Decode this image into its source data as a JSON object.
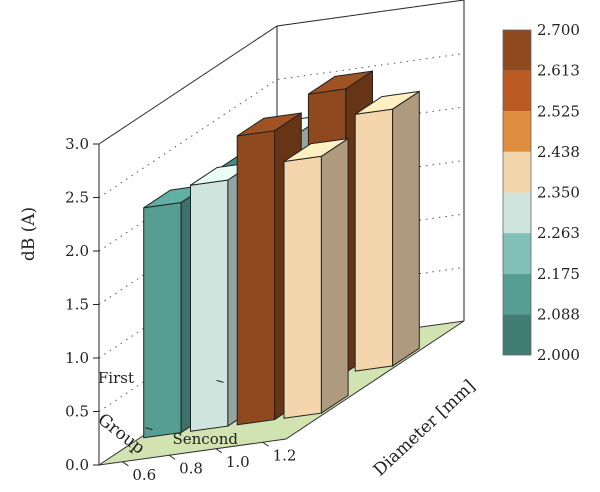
{
  "chart_data": {
    "type": "bar3d",
    "zlabel": "dB (A)",
    "ylabel": "Group",
    "xlabel": "Diameter [mm]",
    "zlim": [
      0,
      3
    ],
    "z_ticks": [
      "0.0",
      "0.5",
      "1.0",
      "1.5",
      "2.0",
      "2.5",
      "3.0"
    ],
    "x_ticks": [
      "0.6",
      "0.8",
      "1.0",
      "1.2"
    ],
    "groups": [
      "First",
      "Sencond"
    ],
    "bars": [
      {
        "group": "First",
        "diameter": 0.6,
        "value": 2.05
      },
      {
        "group": "First",
        "diameter": 0.8,
        "value": 2.3
      },
      {
        "group": "First",
        "diameter": 1.0,
        "value": 2.65
      },
      {
        "group": "First",
        "diameter": 1.2,
        "value": 2.4
      },
      {
        "group": "Sencond",
        "diameter": 0.6,
        "value": 2.15
      },
      {
        "group": "Sencond",
        "diameter": 0.8,
        "value": 2.3
      },
      {
        "group": "Sencond",
        "diameter": 1.0,
        "value": 2.7
      },
      {
        "group": "Sencond",
        "diameter": 1.2,
        "value": 2.4
      }
    ],
    "colorbar": {
      "labels": [
        "2.700",
        "2.613",
        "2.525",
        "2.438",
        "2.350",
        "2.263",
        "2.175",
        "2.088",
        "2.000"
      ],
      "colors": [
        "#8e4a1e",
        "#bb5a22",
        "#de8e3e",
        "#f4d6ad",
        "#cfe4dc",
        "#80c0b8",
        "#569d94",
        "#417d74"
      ]
    },
    "floor_color": "#d0e3b1",
    "grid": true
  }
}
